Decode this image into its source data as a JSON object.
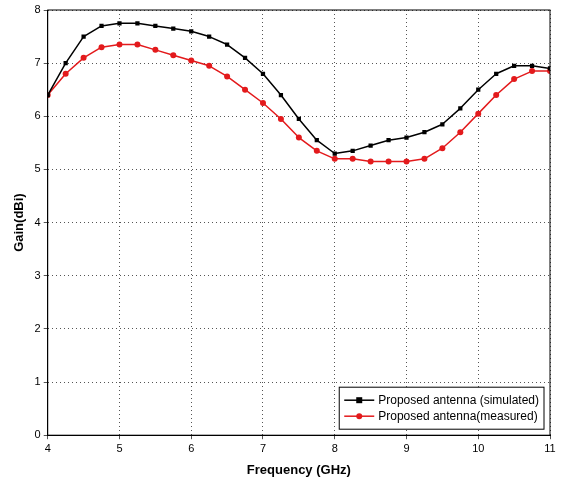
{
  "chart_data": {
    "type": "line",
    "x_label": "Frequency (GHz)",
    "y_label": "Gain(dBi)",
    "x": [
      4,
      4.25,
      4.5,
      4.75,
      5,
      5.25,
      5.5,
      5.75,
      6,
      6.25,
      6.5,
      6.75,
      7,
      7.25,
      7.5,
      7.75,
      8,
      8.25,
      8.5,
      8.75,
      9,
      9.25,
      9.5,
      9.75,
      10,
      10.25,
      10.5,
      10.75,
      11
    ],
    "series": [
      {
        "name": "Proposed antenna (simulated)",
        "color": "#000000",
        "marker": "square",
        "values": [
          6.4,
          7.0,
          7.5,
          7.7,
          7.75,
          7.75,
          7.7,
          7.65,
          7.6,
          7.5,
          7.35,
          7.1,
          6.8,
          6.4,
          5.95,
          5.55,
          5.3,
          5.35,
          5.45,
          5.55,
          5.6,
          5.7,
          5.85,
          6.15,
          6.5,
          6.8,
          6.95,
          6.95,
          6.9
        ]
      },
      {
        "name": "Proposed antenna(measured)",
        "color": "#e31a1c",
        "marker": "circle",
        "values": [
          6.4,
          6.8,
          7.1,
          7.3,
          7.35,
          7.35,
          7.25,
          7.15,
          7.05,
          6.95,
          6.75,
          6.5,
          6.25,
          5.95,
          5.6,
          5.35,
          5.2,
          5.2,
          5.15,
          5.15,
          5.15,
          5.2,
          5.4,
          5.7,
          6.05,
          6.4,
          6.7,
          6.85,
          6.85
        ]
      }
    ],
    "xlim": [
      4,
      11
    ],
    "xticks": [
      4,
      5,
      6,
      7,
      8,
      9,
      10,
      11
    ],
    "ylim": [
      0,
      8
    ],
    "yticks": [
      0,
      1,
      2,
      3,
      4,
      5,
      6,
      7,
      8
    ],
    "grid": true,
    "legend": "lower right"
  }
}
